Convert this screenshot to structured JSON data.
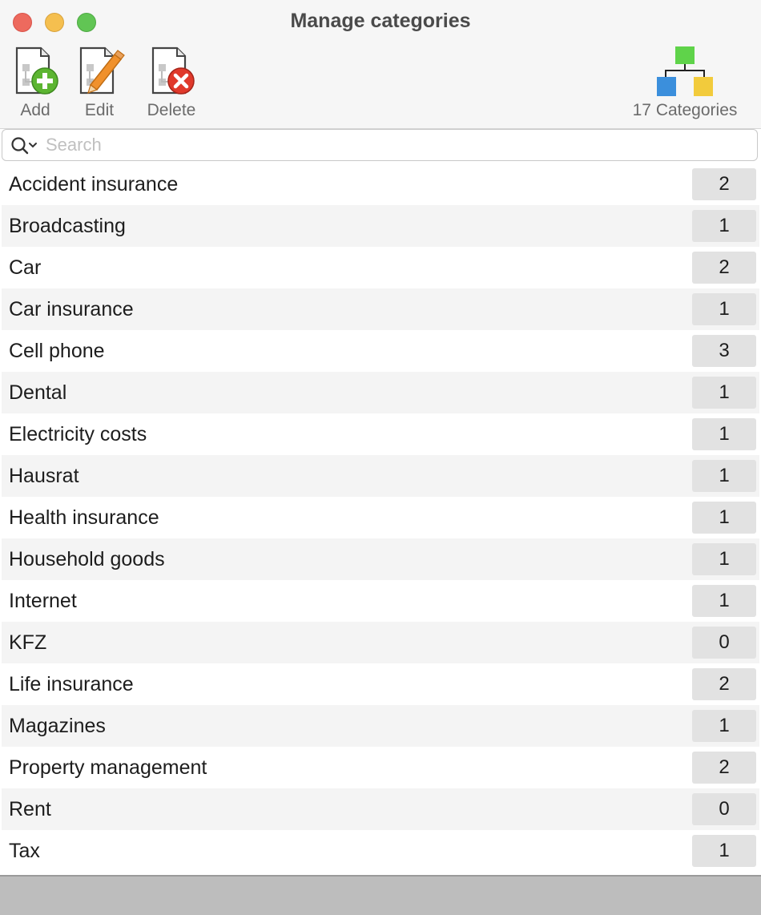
{
  "window": {
    "title": "Manage categories"
  },
  "toolbar": {
    "add_label": "Add",
    "edit_label": "Edit",
    "delete_label": "Delete",
    "category_count_label": "17 Categories"
  },
  "search": {
    "placeholder": "Search",
    "value": ""
  },
  "categories": [
    {
      "name": "Accident insurance",
      "count": "2"
    },
    {
      "name": "Broadcasting",
      "count": "1"
    },
    {
      "name": "Car",
      "count": "2"
    },
    {
      "name": "Car insurance",
      "count": "1"
    },
    {
      "name": "Cell phone",
      "count": "3"
    },
    {
      "name": "Dental",
      "count": "1"
    },
    {
      "name": "Electricity costs",
      "count": "1"
    },
    {
      "name": "Hausrat",
      "count": "1"
    },
    {
      "name": "Health insurance",
      "count": "1"
    },
    {
      "name": "Household goods",
      "count": "1"
    },
    {
      "name": "Internet",
      "count": "1"
    },
    {
      "name": "KFZ",
      "count": "0"
    },
    {
      "name": "Life insurance",
      "count": "2"
    },
    {
      "name": "Magazines",
      "count": "1"
    },
    {
      "name": "Property management",
      "count": "2"
    },
    {
      "name": "Rent",
      "count": "0"
    },
    {
      "name": "Tax",
      "count": "1"
    }
  ],
  "colors": {
    "close": "#ed6a5e",
    "minimize": "#f5bf4f",
    "maximize": "#61c554",
    "add_accent": "#5cb531",
    "edit_accent": "#f0912c",
    "delete_accent": "#e0392b",
    "hierarchy_top": "#5fd34a",
    "hierarchy_left": "#3b8fdc",
    "hierarchy_right": "#f2cb3c"
  }
}
